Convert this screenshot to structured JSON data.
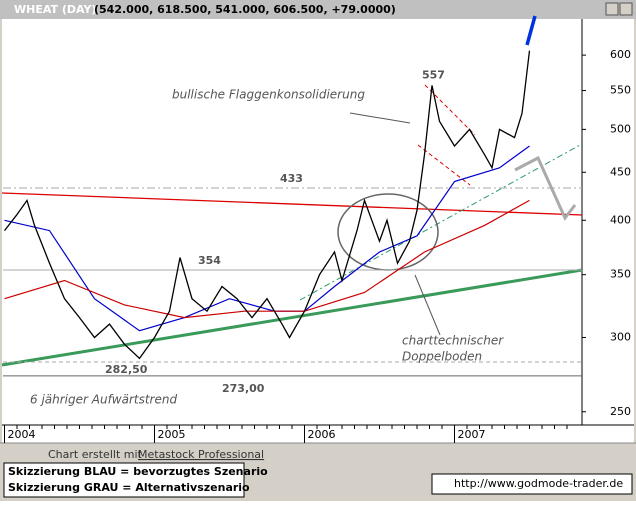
{
  "header": {
    "title": "WHEAT (DAY)",
    "quote": "(542.000, 618.500, 541.000, 606.500, +79.0000)"
  },
  "chart_data": {
    "type": "line",
    "log_scale": true,
    "x": [
      2004.0,
      2004.08,
      2004.15,
      2004.2,
      2004.3,
      2004.4,
      2004.5,
      2004.6,
      2004.7,
      2004.8,
      2004.9,
      2005.0,
      2005.1,
      2005.17,
      2005.25,
      2005.35,
      2005.45,
      2005.55,
      2005.65,
      2005.75,
      2005.85,
      2005.9,
      2006.0,
      2006.1,
      2006.2,
      2006.25,
      2006.35,
      2006.4,
      2006.5,
      2006.55,
      2006.62,
      2006.7,
      2006.75,
      2006.8,
      2006.85,
      2006.9,
      2007.0,
      2007.1,
      2007.2,
      2007.25,
      2007.3,
      2007.4,
      2007.45,
      2007.5
    ],
    "series": [
      {
        "name": "WHEAT",
        "color": "#000000",
        "values": [
          390,
          405,
          420,
          395,
          360,
          330,
          315,
          300,
          310,
          295,
          285,
          300,
          320,
          365,
          330,
          320,
          340,
          330,
          315,
          330,
          310,
          300,
          320,
          350,
          370,
          345,
          390,
          420,
          380,
          400,
          360,
          380,
          410,
          470,
          557,
          510,
          480,
          500,
          470,
          455,
          500,
          490,
          520,
          606.5
        ]
      }
    ],
    "averages": [
      {
        "color": "#0000cc",
        "x": [
          2004.0,
          2004.3,
          2004.6,
          2004.9,
          2005.2,
          2005.5,
          2005.8,
          2006.0,
          2006.2,
          2006.5,
          2006.75,
          2007.0,
          2007.3,
          2007.5
        ],
        "values": [
          400,
          390,
          330,
          305,
          315,
          330,
          320,
          320,
          340,
          370,
          385,
          440,
          455,
          480
        ]
      },
      {
        "color": "#cc0000",
        "x": [
          2004.0,
          2004.4,
          2004.8,
          2005.2,
          2005.6,
          2006.0,
          2006.4,
          2006.8,
          2007.2,
          2007.5
        ],
        "values": [
          330,
          345,
          325,
          315,
          320,
          320,
          335,
          370,
          395,
          420
        ]
      }
    ],
    "xlim": [
      2003.99,
      2007.85
    ],
    "xticks": [
      2004,
      2005,
      2006,
      2007
    ],
    "ylim": [
      242,
      654
    ],
    "yticks": [
      250,
      300,
      350,
      400,
      450,
      500,
      550,
      600
    ],
    "peak": 557,
    "levels": [
      433,
      354,
      {
        "value": 282.5,
        "label": "282,50"
      },
      {
        "value": 273,
        "label": "273,00"
      }
    ],
    "annotations": [
      "bullische Flaggenkonsolidierung",
      "charttechnischer",
      "Doppelboden",
      "6 jähriger Aufwärtstrend"
    ]
  },
  "footer": {
    "credit": "Chart erstellt mit",
    "software": "Metastock Professional",
    "legend_blue": "Skizzierung BLAU = bevorzugtes Szenario",
    "legend_grey": "Skizzierung GRAU = Alternativszenario",
    "url": "http://www.godmode-trader.de"
  }
}
